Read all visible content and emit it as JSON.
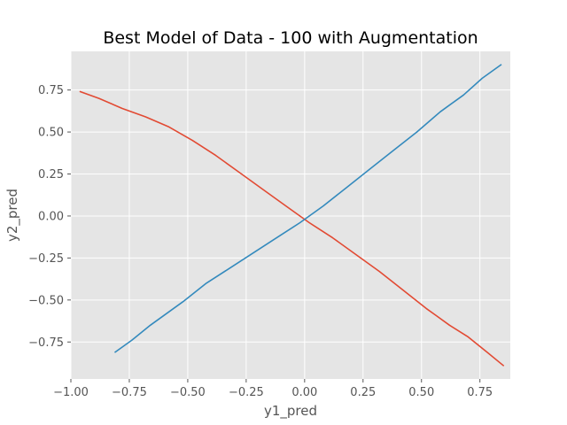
{
  "chart_data": {
    "type": "line",
    "title": "Best Model of Data - 100 with Augmentation",
    "xlabel": "y1_pred",
    "ylabel": "y2_pred",
    "xlim": [
      -1.0,
      0.88
    ],
    "ylim": [
      -0.97,
      0.98
    ],
    "grid": true,
    "style": "ggplot",
    "x_ticks": [
      -1.0,
      -0.75,
      -0.5,
      -0.25,
      0.0,
      0.25,
      0.5,
      0.75
    ],
    "x_tick_labels": [
      "−1.00",
      "−0.75",
      "−0.50",
      "−0.25",
      "0.00",
      "0.25",
      "0.50",
      "0.75"
    ],
    "y_ticks": [
      -0.75,
      -0.5,
      -0.25,
      0.0,
      0.25,
      0.5,
      0.75
    ],
    "y_tick_labels": [
      "−0.75",
      "−0.50",
      "−0.25",
      "0.00",
      "0.25",
      "0.50",
      "0.75"
    ],
    "series": [
      {
        "color": "#E24A33",
        "x": [
          -0.96,
          -0.88,
          -0.78,
          -0.68,
          -0.58,
          -0.48,
          -0.38,
          -0.28,
          -0.18,
          -0.08,
          0.02,
          0.12,
          0.22,
          0.32,
          0.42,
          0.52,
          0.56,
          0.62,
          0.7,
          0.78,
          0.85
        ],
        "y": [
          0.74,
          0.7,
          0.64,
          0.59,
          0.53,
          0.45,
          0.36,
          0.26,
          0.16,
          0.06,
          -0.04,
          -0.13,
          -0.23,
          -0.33,
          -0.44,
          -0.55,
          -0.59,
          -0.65,
          -0.72,
          -0.81,
          -0.89
        ]
      },
      {
        "color": "#348ABD",
        "x": [
          -0.81,
          -0.74,
          -0.66,
          -0.52,
          -0.42,
          -0.32,
          -0.22,
          -0.12,
          -0.02,
          0.08,
          0.18,
          0.28,
          0.38,
          0.48,
          0.58,
          0.62,
          0.68,
          0.76,
          0.84
        ],
        "y": [
          -0.81,
          -0.74,
          -0.65,
          -0.51,
          -0.4,
          -0.31,
          -0.22,
          -0.13,
          -0.04,
          0.06,
          0.17,
          0.28,
          0.39,
          0.5,
          0.62,
          0.66,
          0.72,
          0.82,
          0.9
        ]
      }
    ]
  }
}
